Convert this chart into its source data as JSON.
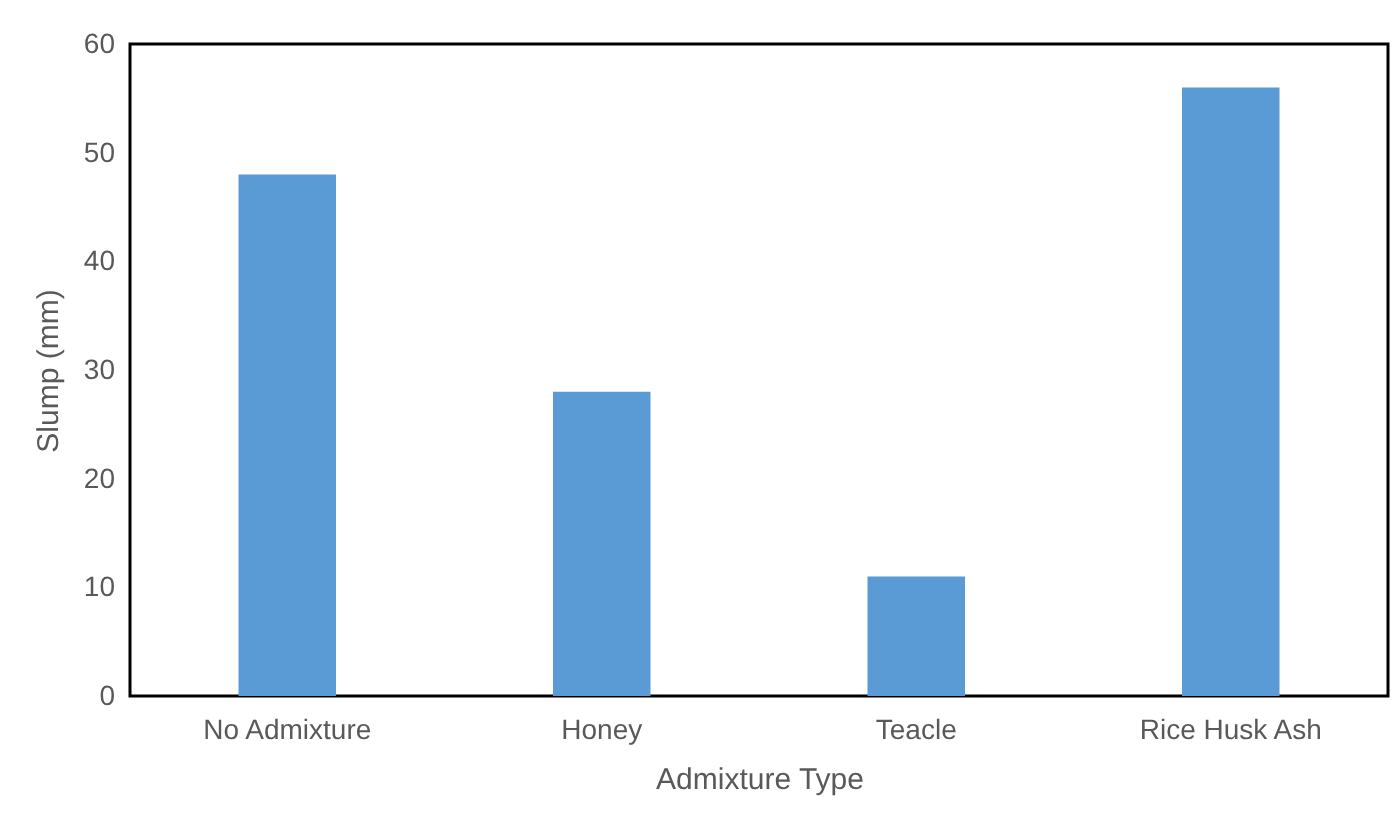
{
  "chart_data": {
    "type": "bar",
    "xlabel": "Admixture Type",
    "ylabel": "Slump (mm)",
    "categories": [
      "No Admixture",
      "Honey",
      "Teacle",
      "Rice Husk Ash"
    ],
    "values": [
      48,
      28,
      11,
      56
    ],
    "color": "#5b9bd5",
    "ylim": [
      0,
      60
    ],
    "yticks": [
      0,
      10,
      20,
      30,
      40,
      50,
      60
    ],
    "grid": false,
    "legend": false
  }
}
